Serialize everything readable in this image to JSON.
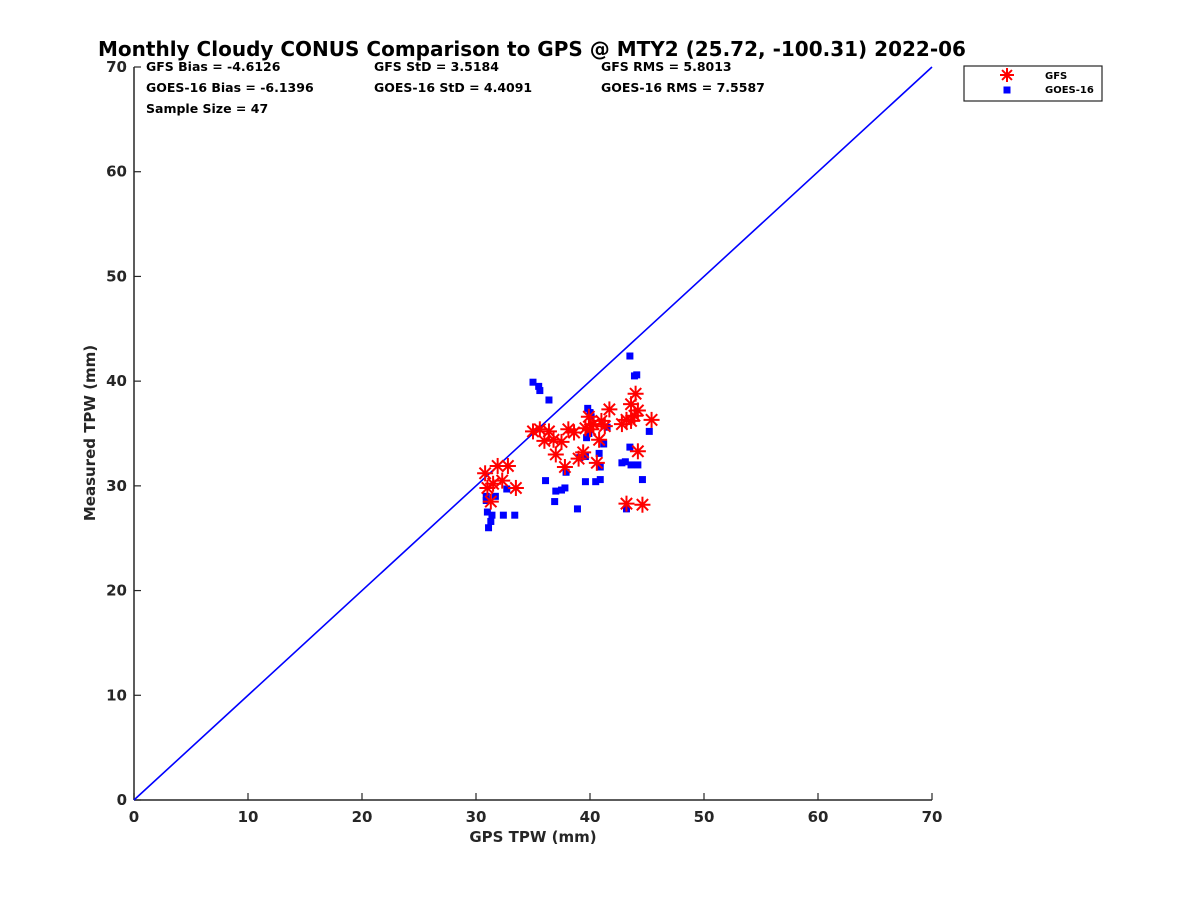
{
  "chart_data": {
    "type": "scatter",
    "title": "Monthly Cloudy CONUS Comparison to GPS @ MTY2 (25.72, -100.31) 2022-06",
    "xlabel": "GPS TPW (mm)",
    "ylabel": "Measured TPW (mm)",
    "xlim": [
      0,
      70
    ],
    "ylim": [
      0,
      70
    ],
    "xticks": [
      "0",
      "10",
      "20",
      "30",
      "40",
      "50",
      "60",
      "70"
    ],
    "yticks": [
      "0",
      "10",
      "20",
      "30",
      "40",
      "50",
      "60",
      "70"
    ],
    "grid": false,
    "legend_position": "top-right",
    "reference_line": {
      "name": "1:1 line",
      "color": "#0000ff",
      "x": [
        0,
        70
      ],
      "y": [
        0,
        70
      ]
    },
    "stats": {
      "gfs_bias": "GFS Bias = -4.6126",
      "gfs_std": "GFS StD = 3.5184",
      "gfs_rms": "GFS RMS = 5.8013",
      "goes_bias": "GOES-16 Bias = -6.1396",
      "goes_std": "GOES-16 StD = 4.4091",
      "goes_rms": "GOES-16 RMS = 7.5587",
      "sample_size": "Sample Size = 47"
    },
    "series": [
      {
        "name": "GFS",
        "marker": "asterisk",
        "color": "#ff0000",
        "points": [
          [
            30.8,
            31.2
          ],
          [
            31.0,
            29.8
          ],
          [
            31.3,
            28.5
          ],
          [
            31.5,
            30.2
          ],
          [
            31.9,
            31.9
          ],
          [
            32.3,
            30.5
          ],
          [
            32.8,
            31.9
          ],
          [
            33.5,
            29.8
          ],
          [
            35.0,
            35.2
          ],
          [
            35.6,
            35.4
          ],
          [
            36.0,
            34.3
          ],
          [
            36.4,
            35.2
          ],
          [
            36.8,
            34.4
          ],
          [
            37.0,
            33.0
          ],
          [
            37.5,
            34.2
          ],
          [
            37.8,
            31.8
          ],
          [
            38.1,
            35.4
          ],
          [
            38.6,
            35.1
          ],
          [
            39.0,
            32.6
          ],
          [
            39.4,
            33.2
          ],
          [
            39.6,
            35.5
          ],
          [
            39.9,
            36.6
          ],
          [
            40.0,
            35.4
          ],
          [
            40.3,
            35.9
          ],
          [
            40.6,
            32.2
          ],
          [
            40.8,
            34.4
          ],
          [
            41.0,
            36.2
          ],
          [
            41.3,
            35.7
          ],
          [
            41.7,
            37.3
          ],
          [
            42.8,
            35.9
          ],
          [
            43.2,
            28.3
          ],
          [
            43.2,
            36.3
          ],
          [
            43.6,
            36.2
          ],
          [
            43.6,
            37.8
          ],
          [
            43.9,
            36.7
          ],
          [
            44.0,
            38.8
          ],
          [
            44.2,
            37.2
          ],
          [
            44.2,
            33.3
          ],
          [
            44.6,
            28.2
          ],
          [
            45.4,
            36.3
          ]
        ]
      },
      {
        "name": "GOES-16",
        "marker": "square",
        "color": "#0000ff",
        "points": [
          [
            30.9,
            29.0
          ],
          [
            30.9,
            28.6
          ],
          [
            31.0,
            27.5
          ],
          [
            31.1,
            26.0
          ],
          [
            31.3,
            26.6
          ],
          [
            31.4,
            27.2
          ],
          [
            31.7,
            29.0
          ],
          [
            32.4,
            27.2
          ],
          [
            32.7,
            29.7
          ],
          [
            33.4,
            27.2
          ],
          [
            35.0,
            39.9
          ],
          [
            35.5,
            39.5
          ],
          [
            35.6,
            39.1
          ],
          [
            36.1,
            30.5
          ],
          [
            36.4,
            38.2
          ],
          [
            36.9,
            28.5
          ],
          [
            37.0,
            29.5
          ],
          [
            37.5,
            29.6
          ],
          [
            37.8,
            29.8
          ],
          [
            37.9,
            31.3
          ],
          [
            38.9,
            27.8
          ],
          [
            39.1,
            32.7
          ],
          [
            39.6,
            32.8
          ],
          [
            39.6,
            30.4
          ],
          [
            39.7,
            34.6
          ],
          [
            39.8,
            37.4
          ],
          [
            39.9,
            35.0
          ],
          [
            40.0,
            37.0
          ],
          [
            40.1,
            36.6
          ],
          [
            40.5,
            30.4
          ],
          [
            40.8,
            33.1
          ],
          [
            40.9,
            31.8
          ],
          [
            40.9,
            30.6
          ],
          [
            41.2,
            34.0
          ],
          [
            41.5,
            35.6
          ],
          [
            42.8,
            32.2
          ],
          [
            43.1,
            32.3
          ],
          [
            43.2,
            27.8
          ],
          [
            43.5,
            42.4
          ],
          [
            43.5,
            33.7
          ],
          [
            43.6,
            32.0
          ],
          [
            43.9,
            40.5
          ],
          [
            44.1,
            40.6
          ],
          [
            44.2,
            32.0
          ],
          [
            44.6,
            30.6
          ],
          [
            45.2,
            35.2
          ]
        ]
      }
    ]
  }
}
